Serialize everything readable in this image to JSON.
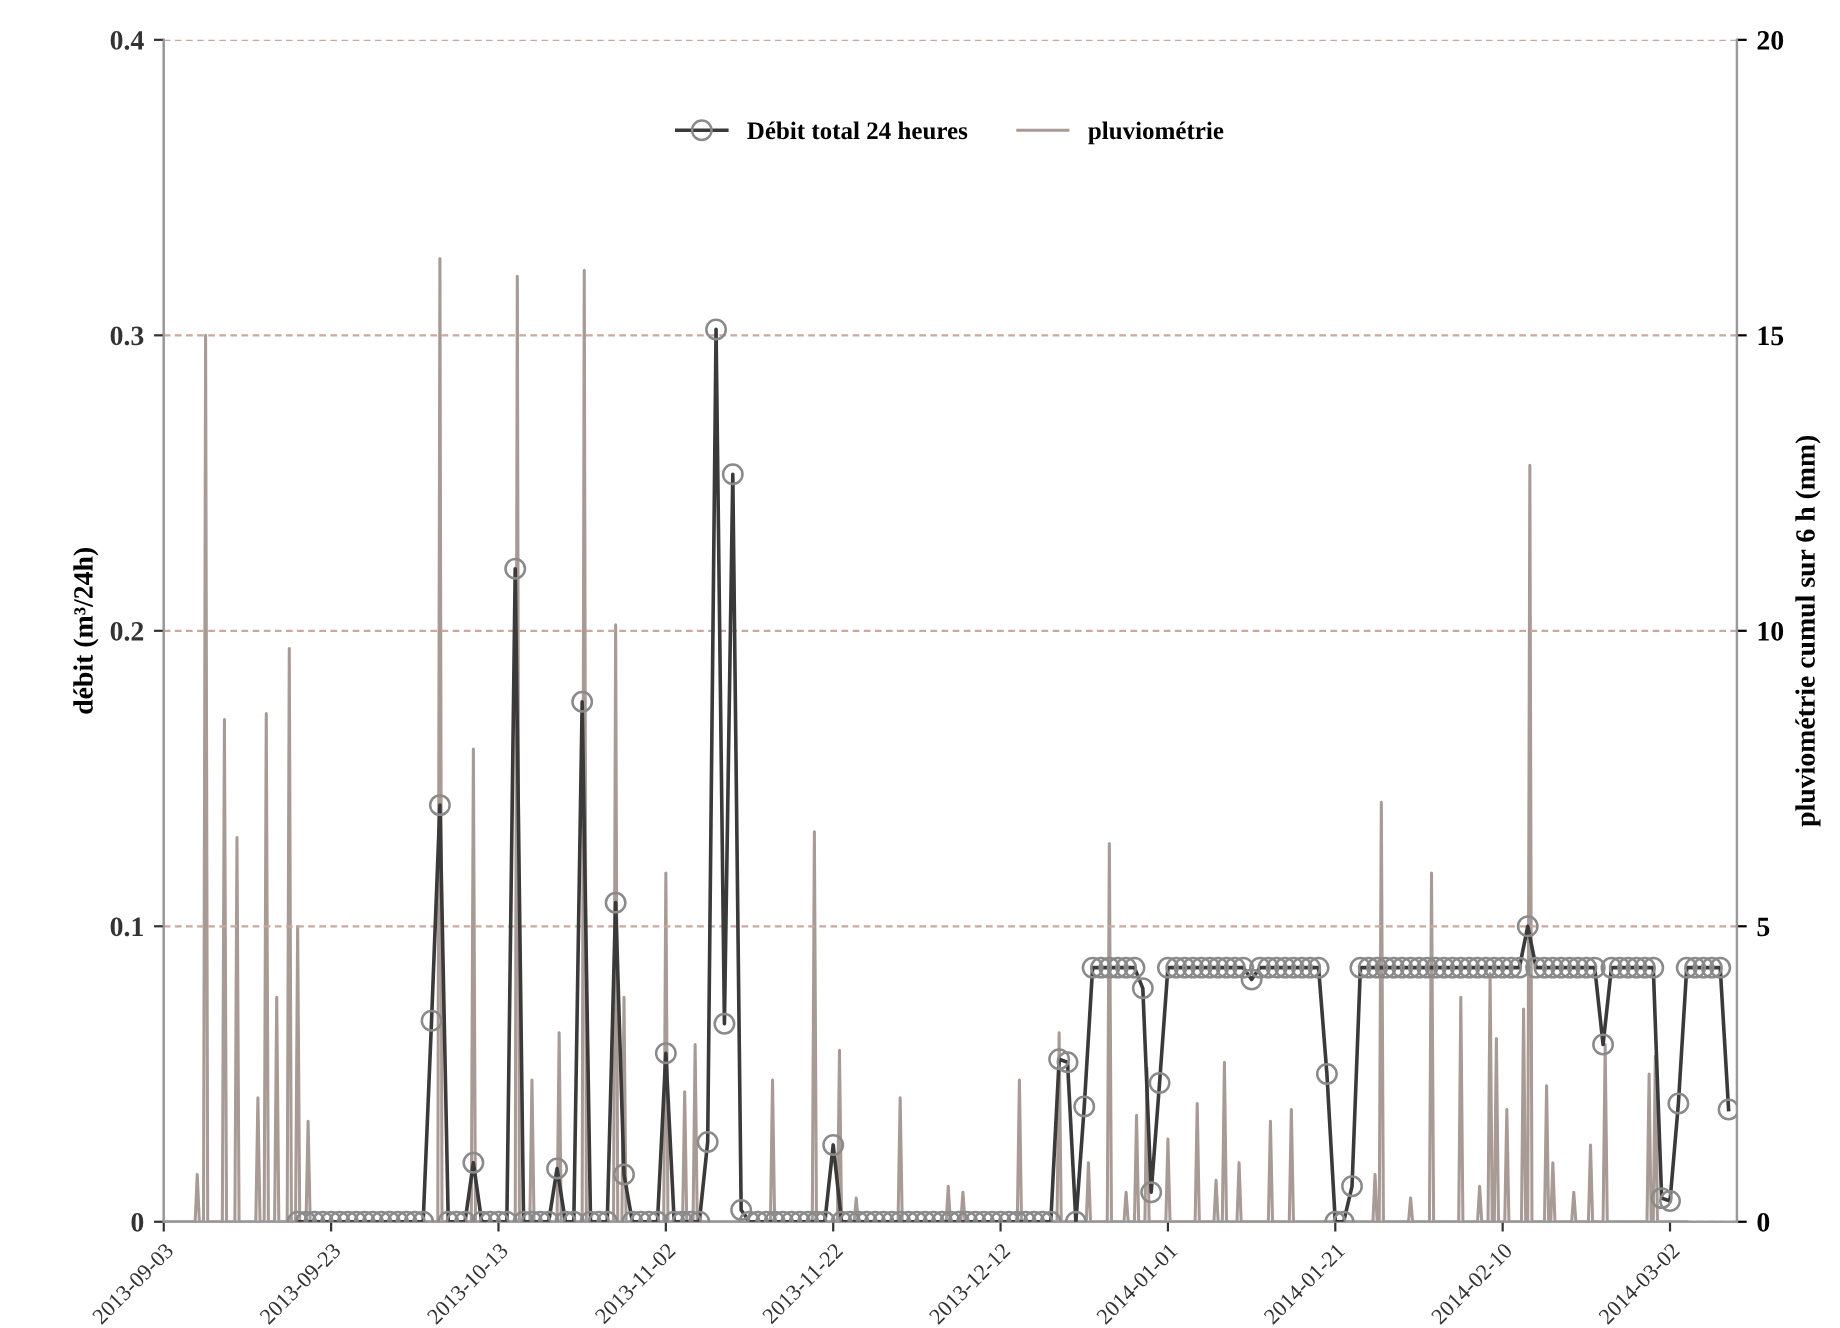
{
  "chart_data": {
    "type": "line",
    "ylabel": "débit (m³/24h)",
    "y2label": "pluviométrie cumul sur 6 h (mm)",
    "xlim": [
      "2013-09-03",
      "2014-03-10"
    ],
    "xticks": [
      "2013-09-03",
      "2013-09-23",
      "2013-10-13",
      "2013-11-02",
      "2013-11-22",
      "2013-12-12",
      "2014-01-01",
      "2014-01-21",
      "2014-02-10",
      "2014-03-02"
    ],
    "ylim": [
      0,
      0.4
    ],
    "yticks": [
      0,
      0.1,
      0.2,
      0.3,
      0.4
    ],
    "y2lim": [
      0,
      20
    ],
    "y2ticks": [
      0,
      5,
      10,
      15,
      20
    ],
    "grid": "y",
    "legend": "top",
    "series": [
      {
        "name": "Débit total 24 heures",
        "color": "#3a3a3a",
        "marker": "circle",
        "line_style": "solid",
        "x": [
          "2013-09-19",
          "2013-09-20",
          "2013-09-21",
          "2013-09-22",
          "2013-09-23",
          "2013-09-24",
          "2013-09-25",
          "2013-09-26",
          "2013-09-27",
          "2013-09-28",
          "2013-09-29",
          "2013-09-30",
          "2013-10-01",
          "2013-10-02",
          "2013-10-03",
          "2013-10-04",
          "2013-10-05",
          "2013-10-06",
          "2013-10-07",
          "2013-10-08",
          "2013-10-09",
          "2013-10-10",
          "2013-10-11",
          "2013-10-12",
          "2013-10-13",
          "2013-10-14",
          "2013-10-15",
          "2013-10-16",
          "2013-10-17",
          "2013-10-18",
          "2013-10-19",
          "2013-10-20",
          "2013-10-21",
          "2013-10-22",
          "2013-10-23",
          "2013-10-24",
          "2013-10-25",
          "2013-10-26",
          "2013-10-27",
          "2013-10-28",
          "2013-10-29",
          "2013-10-30",
          "2013-10-31",
          "2013-11-01",
          "2013-11-02",
          "2013-11-03",
          "2013-11-04",
          "2013-11-05",
          "2013-11-06",
          "2013-11-07",
          "2013-11-08",
          "2013-11-09",
          "2013-11-10",
          "2013-11-11",
          "2013-11-12",
          "2013-11-13",
          "2013-11-14",
          "2013-11-15",
          "2013-11-16",
          "2013-11-17",
          "2013-11-18",
          "2013-11-19",
          "2013-11-20",
          "2013-11-21",
          "2013-11-22",
          "2013-11-23",
          "2013-11-24",
          "2013-11-25",
          "2013-11-26",
          "2013-11-27",
          "2013-11-28",
          "2013-11-29",
          "2013-11-30",
          "2013-12-01",
          "2013-12-02",
          "2013-12-03",
          "2013-12-04",
          "2013-12-05",
          "2013-12-06",
          "2013-12-07",
          "2013-12-08",
          "2013-12-09",
          "2013-12-10",
          "2013-12-11",
          "2013-12-12",
          "2013-12-13",
          "2013-12-14",
          "2013-12-15",
          "2013-12-16",
          "2013-12-17",
          "2013-12-18",
          "2013-12-19",
          "2013-12-20",
          "2013-12-21",
          "2013-12-22",
          "2013-12-23",
          "2013-12-24",
          "2013-12-25",
          "2013-12-26",
          "2013-12-27",
          "2013-12-28",
          "2013-12-29",
          "2013-12-30",
          "2013-12-31",
          "2014-01-01",
          "2014-01-02",
          "2014-01-03",
          "2014-01-04",
          "2014-01-05",
          "2014-01-06",
          "2014-01-07",
          "2014-01-08",
          "2014-01-09",
          "2014-01-10",
          "2014-01-11",
          "2014-01-12",
          "2014-01-13",
          "2014-01-14",
          "2014-01-15",
          "2014-01-16",
          "2014-01-17",
          "2014-01-18",
          "2014-01-19",
          "2014-01-20",
          "2014-01-21",
          "2014-01-22",
          "2014-01-23",
          "2014-01-24",
          "2014-01-25",
          "2014-01-26",
          "2014-01-27",
          "2014-01-28",
          "2014-01-29",
          "2014-01-30",
          "2014-01-31",
          "2014-02-01",
          "2014-02-02",
          "2014-02-03",
          "2014-02-04",
          "2014-02-05",
          "2014-02-06",
          "2014-02-07",
          "2014-02-08",
          "2014-02-09",
          "2014-02-10",
          "2014-02-11",
          "2014-02-12",
          "2014-02-13",
          "2014-02-14",
          "2014-02-15",
          "2014-02-16",
          "2014-02-17",
          "2014-02-18",
          "2014-02-19",
          "2014-02-20",
          "2014-02-21",
          "2014-02-22",
          "2014-02-23",
          "2014-02-24",
          "2014-02-25",
          "2014-02-26",
          "2014-02-27",
          "2014-02-28",
          "2014-03-01",
          "2014-03-02",
          "2014-03-03",
          "2014-03-04",
          "2014-03-05",
          "2014-03-06",
          "2014-03-07",
          "2014-03-08",
          "2014-03-09"
        ],
        "values": [
          0,
          0,
          0,
          0,
          0,
          0,
          0,
          0,
          0,
          0,
          0,
          0,
          0,
          0,
          0,
          0,
          0.068,
          0.141,
          0,
          0,
          0,
          0.02,
          0,
          0,
          0,
          0,
          0.221,
          0,
          0,
          0,
          0,
          0.018,
          0,
          0,
          0.176,
          0,
          0,
          0,
          0.108,
          0.016,
          0,
          0,
          0,
          0,
          0.057,
          0,
          0,
          0,
          0,
          0.027,
          0.302,
          0.067,
          0.253,
          0.004,
          0,
          0,
          0,
          0,
          0,
          0,
          0,
          0,
          0,
          0,
          0.026,
          0,
          0,
          0,
          0,
          0,
          0,
          0,
          0,
          0,
          0,
          0,
          0,
          0,
          0,
          0,
          0,
          0,
          0,
          0,
          0,
          0,
          0,
          0,
          0,
          0,
          0,
          0.055,
          0.054,
          0,
          0.039,
          0.086,
          0.086,
          0.086,
          0.086,
          0.086,
          0.086,
          0.079,
          0.01,
          0.047,
          0.086,
          0.086,
          0.086,
          0.086,
          0.086,
          0.086,
          0.086,
          0.086,
          0.086,
          0.086,
          0.082,
          0.086,
          0.086,
          0.086,
          0.086,
          0.086,
          0.086,
          0.086,
          0.086,
          0.05,
          0,
          0,
          0.012,
          0.086,
          0.086,
          0.086,
          0.086,
          0.086,
          0.086,
          0.086,
          0.086,
          0.086,
          0.086,
          0.086,
          0.086,
          0.086,
          0.086,
          0.086,
          0.086,
          0.086,
          0.086,
          0.086,
          0.086,
          0.1,
          0.086,
          0.086,
          0.086,
          0.086,
          0.086,
          0.086,
          0.086,
          0.086,
          0.06,
          0.086,
          0.086,
          0.086,
          0.086,
          0.086,
          0.086,
          0.008,
          0.007,
          0.04,
          0.086,
          0.086,
          0.086,
          0.086,
          0.086,
          0.038
        ]
      },
      {
        "name": "pluviométrie",
        "color": "#a89a94",
        "marker": "none",
        "line_style": "solid",
        "axis": "y2",
        "x": [
          "2013-09-03T00:00",
          "2013-09-06T18:00",
          "2013-09-07T00:00",
          "2013-09-07T06:00",
          "2013-09-07T18:00",
          "2013-09-08T00:00",
          "2013-09-08T06:00",
          "2013-09-10T00:00",
          "2013-09-10T06:00",
          "2013-09-10T12:00",
          "2013-09-11T12:00",
          "2013-09-11T18:00",
          "2013-09-12T00:00",
          "2013-09-14T00:00",
          "2013-09-14T06:00",
          "2013-09-14T12:00",
          "2013-09-15T00:00",
          "2013-09-15T06:00",
          "2013-09-15T12:00",
          "2013-09-16T06:00",
          "2013-09-16T12:00",
          "2013-09-16T18:00",
          "2013-09-17T18:00",
          "2013-09-18T00:00",
          "2013-09-18T06:00",
          "2013-09-18T18:00",
          "2013-09-19T00:00",
          "2013-09-19T06:00",
          "2013-09-20T00:00",
          "2013-09-20T06:00",
          "2013-09-20T12:00",
          "2013-10-05T18:00",
          "2013-10-06T00:00",
          "2013-10-06T06:00",
          "2013-10-09T18:00",
          "2013-10-10T00:00",
          "2013-10-10T06:00",
          "2013-10-15T00:00",
          "2013-10-15T06:00",
          "2013-10-15T12:00",
          "2013-10-16T18:00",
          "2013-10-17T00:00",
          "2013-10-17T06:00",
          "2013-10-20T00:00",
          "2013-10-20T06:00",
          "2013-10-20T12:00",
          "2013-10-23T00:00",
          "2013-10-23T06:00",
          "2013-10-23T12:00",
          "2013-10-26T18:00",
          "2013-10-27T00:00",
          "2013-10-27T06:00",
          "2013-10-27T18:00",
          "2013-10-28T00:00",
          "2013-10-28T06:00",
          "2013-11-01T18:00",
          "2013-11-02T00:00",
          "2013-11-02T06:00",
          "2013-11-04T00:00",
          "2013-11-04T06:00",
          "2013-11-04T12:00",
          "2013-11-05T06:00",
          "2013-11-05T12:00",
          "2013-11-05T18:00",
          "2013-11-14T12:00",
          "2013-11-14T18:00",
          "2013-11-15T00:00",
          "2013-11-19T12:00",
          "2013-11-19T18:00",
          "2013-11-20T00:00",
          "2013-11-22T12:00",
          "2013-11-22T18:00",
          "2013-11-23T00:00",
          "2013-11-24T12:00",
          "2013-11-24T18:00",
          "2013-11-25T00:00",
          "2013-11-29T18:00",
          "2013-11-30T00:00",
          "2013-11-30T06:00",
          "2013-12-05T12:00",
          "2013-12-05T18:00",
          "2013-12-06T00:00",
          "2013-12-07T06:00",
          "2013-12-07T12:00",
          "2013-12-07T18:00",
          "2013-12-14T00:00",
          "2013-12-14T06:00",
          "2013-12-14T12:00",
          "2013-12-18T18:00",
          "2013-12-19T00:00",
          "2013-12-19T06:00",
          "2013-12-22T06:00",
          "2013-12-22T12:00",
          "2013-12-22T18:00",
          "2013-12-24T18:00",
          "2013-12-25T00:00",
          "2013-12-25T06:00",
          "2013-12-26T18:00",
          "2013-12-27T00:00",
          "2013-12-27T06:00",
          "2013-12-28T00:00",
          "2013-12-28T06:00",
          "2013-12-28T12:00",
          "2013-12-29T06:00",
          "2013-12-29T12:00",
          "2013-12-29T18:00",
          "2013-12-31T18:00",
          "2014-01-01T00:00",
          "2014-01-01T06:00",
          "2014-01-04T06:00",
          "2014-01-04T12:00",
          "2014-01-04T18:00",
          "2014-01-06T12:00",
          "2014-01-06T18:00",
          "2014-01-07T00:00",
          "2014-01-07T12:00",
          "2014-01-07T18:00",
          "2014-01-08T00:00",
          "2014-01-09T06:00",
          "2014-01-09T12:00",
          "2014-01-09T18:00",
          "2014-01-13T00:00",
          "2014-01-13T06:00",
          "2014-01-13T12:00",
          "2014-01-15T12:00",
          "2014-01-15T18:00",
          "2014-01-16T00:00",
          "2014-01-25T12:00",
          "2014-01-25T18:00",
          "2014-01-26T00:00",
          "2014-01-26T06:00",
          "2014-01-26T12:00",
          "2014-01-26T18:00",
          "2014-01-29T18:00",
          "2014-01-30T00:00",
          "2014-01-30T06:00",
          "2014-02-01T06:00",
          "2014-02-01T12:00",
          "2014-02-01T18:00",
          "2014-02-04T18:00",
          "2014-02-05T00:00",
          "2014-02-05T06:00",
          "2014-02-07T00:00",
          "2014-02-07T06:00",
          "2014-02-07T12:00",
          "2014-02-08T06:00",
          "2014-02-08T12:00",
          "2014-02-08T18:00",
          "2014-02-09T00:00",
          "2014-02-09T06:00",
          "2014-02-09T12:00",
          "2014-02-10T06:00",
          "2014-02-10T12:00",
          "2014-02-10T18:00",
          "2014-02-12T06:00",
          "2014-02-12T12:00",
          "2014-02-12T18:00",
          "2014-02-13T00:00",
          "2014-02-13T06:00",
          "2014-02-13T12:00",
          "2014-02-15T00:00",
          "2014-02-15T06:00",
          "2014-02-15T12:00",
          "2014-02-15T18:00",
          "2014-02-16T00:00",
          "2014-02-16T06:00",
          "2014-02-18T06:00",
          "2014-02-18T12:00",
          "2014-02-18T18:00",
          "2014-02-20T06:00",
          "2014-02-20T12:00",
          "2014-02-20T18:00",
          "2014-02-22T00:00",
          "2014-02-22T06:00",
          "2014-02-22T12:00",
          "2014-02-27T06:00",
          "2014-02-27T12:00",
          "2014-02-27T18:00",
          "2014-02-28T00:00",
          "2014-02-28T06:00",
          "2014-02-28T12:00",
          "2014-03-04T00:00"
        ],
        "values": [
          0,
          0,
          0.8,
          0,
          0,
          15.0,
          0,
          0,
          8.5,
          0,
          0,
          6.5,
          0,
          0,
          2.1,
          0,
          0,
          8.6,
          0,
          0,
          3.8,
          0,
          0,
          9.7,
          0,
          0,
          5.0,
          0,
          0,
          1.7,
          0,
          0,
          16.3,
          0,
          0,
          8.0,
          0,
          0,
          16.0,
          0,
          0,
          2.4,
          0,
          0,
          3.2,
          0,
          0,
          16.1,
          0,
          0,
          10.1,
          0,
          0,
          3.8,
          0,
          0,
          5.9,
          0,
          0,
          2.2,
          0,
          0,
          3.0,
          0,
          0,
          2.4,
          0,
          0,
          6.6,
          0,
          0,
          2.9,
          0,
          0,
          0.4,
          0,
          0,
          2.1,
          0,
          0,
          0.6,
          0,
          0,
          0.5,
          0,
          0,
          2.4,
          0,
          0,
          3.2,
          0,
          0,
          1.0,
          0,
          0,
          6.4,
          0,
          0,
          0.5,
          0,
          0,
          1.8,
          0,
          0,
          2.6,
          0,
          0,
          1.4,
          0,
          0,
          2.0,
          0,
          0,
          0.7,
          0,
          0,
          2.7,
          0,
          0,
          1.0,
          0,
          0,
          1.7,
          0,
          0,
          1.9,
          0,
          0,
          0.8,
          0,
          0,
          7.1,
          0,
          0,
          0.4,
          0,
          0,
          5.9,
          0,
          0,
          3.8,
          0,
          0,
          0.6,
          0,
          0,
          4.2,
          0,
          0,
          3.1,
          0,
          0,
          1.9,
          0,
          0,
          3.6,
          0,
          0,
          12.8,
          0,
          0,
          2.3,
          0,
          0,
          1.0,
          0,
          0,
          0.5,
          0,
          0,
          1.3,
          0,
          0,
          3.0,
          0,
          0,
          2.5,
          0,
          0,
          2.8,
          0,
          0
        ]
      }
    ]
  }
}
